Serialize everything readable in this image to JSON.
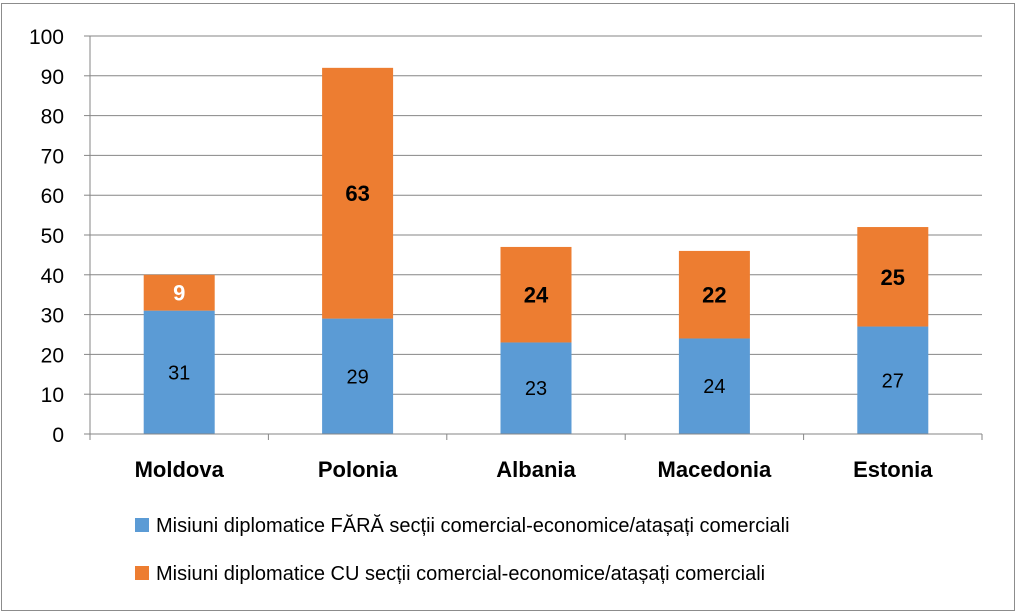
{
  "chart_data": {
    "type": "bar",
    "stacked": true,
    "title": "",
    "xlabel": "",
    "ylabel": "",
    "ylim": [
      0,
      100
    ],
    "yticks": [
      0,
      10,
      20,
      30,
      40,
      50,
      60,
      70,
      80,
      90,
      100
    ],
    "grid": true,
    "legend_position": "bottom",
    "categories": [
      "Moldova",
      "Polonia",
      "Albania",
      "Macedonia",
      "Estonia"
    ],
    "series": [
      {
        "name": "Misiuni diplomatice FĂRĂ secții comercial-economice/atașați comerciali",
        "color": "#5b9bd5",
        "values": [
          31,
          29,
          23,
          24,
          27
        ]
      },
      {
        "name": "Misiuni diplomatice CU secții comercial-economice/atașați comerciali",
        "color": "#ed7d31",
        "values": [
          9,
          63,
          24,
          22,
          25
        ]
      }
    ]
  }
}
